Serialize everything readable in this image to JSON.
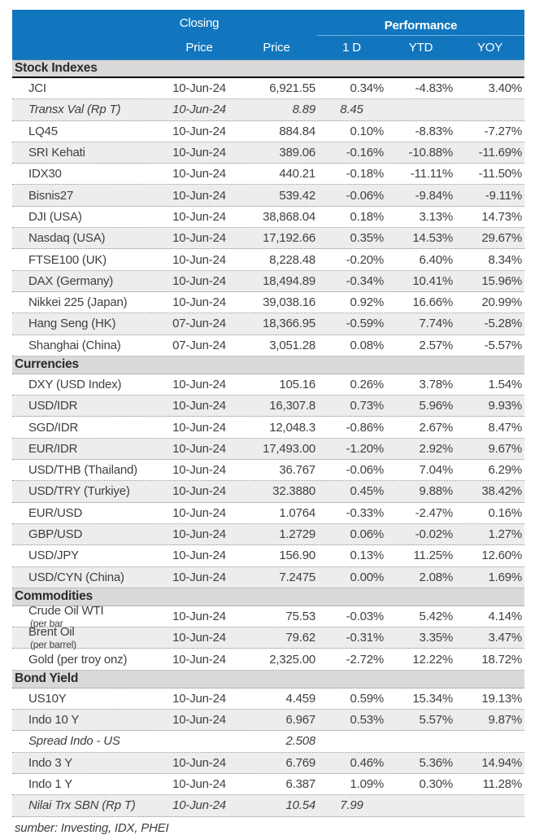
{
  "colors": {
    "header_bg": "#1176BD",
    "header_text": "#FFFFFF",
    "section_bg": "#D9D9D9",
    "row_alt_bg": "#EDEDED",
    "text": "#3F3F3F",
    "divider": "#8F8F8F",
    "section_divider": "#000000"
  },
  "header": {
    "closing_line1": "Closing",
    "closing_line2": "Price",
    "price_label": "Price",
    "performance_label": "Performance",
    "sub_labels": [
      "1 D",
      "YTD",
      "YOY"
    ]
  },
  "sections": [
    {
      "title": "Stock Indexes",
      "rows": [
        {
          "name": "JCI",
          "date": "10-Jun-24",
          "price": "6,921.55",
          "d1": "0.34%",
          "ytd": "-4.83%",
          "yoy": "3.40%"
        },
        {
          "name": "Transx Val (Rp T)",
          "date": "10-Jun-24",
          "price": "8.89",
          "d1": "8.45",
          "ytd": "",
          "yoy": "",
          "aux": true
        },
        {
          "name": "LQ45",
          "date": "10-Jun-24",
          "price": "884.84",
          "d1": "0.10%",
          "ytd": "-8.83%",
          "yoy": "-7.27%"
        },
        {
          "name": "SRI Kehati",
          "date": "10-Jun-24",
          "price": "389.06",
          "d1": "-0.16%",
          "ytd": "-10.88%",
          "yoy": "-11.69%"
        },
        {
          "name": "IDX30",
          "date": "10-Jun-24",
          "price": "440.21",
          "d1": "-0.18%",
          "ytd": "-11.11%",
          "yoy": "-11.50%"
        },
        {
          "name": "Bisnis27",
          "date": "10-Jun-24",
          "price": "539.42",
          "d1": "-0.06%",
          "ytd": "-9.84%",
          "yoy": "-9.11%"
        },
        {
          "name": "DJI (USA)",
          "date": "10-Jun-24",
          "price": "38,868.04",
          "d1": "0.18%",
          "ytd": "3.13%",
          "yoy": "14.73%"
        },
        {
          "name": "Nasdaq (USA)",
          "date": "10-Jun-24",
          "price": "17,192.66",
          "d1": "0.35%",
          "ytd": "14.53%",
          "yoy": "29.67%"
        },
        {
          "name": "FTSE100 (UK)",
          "date": "10-Jun-24",
          "price": "8,228.48",
          "d1": "-0.20%",
          "ytd": "6.40%",
          "yoy": "8.34%"
        },
        {
          "name": "DAX (Germany)",
          "date": "10-Jun-24",
          "price": "18,494.89",
          "d1": "-0.34%",
          "ytd": "10.41%",
          "yoy": "15.96%"
        },
        {
          "name": "Nikkei 225 (Japan)",
          "date": "10-Jun-24",
          "price": "39,038.16",
          "d1": "0.92%",
          "ytd": "16.66%",
          "yoy": "20.99%"
        },
        {
          "name": "Hang Seng (HK)",
          "date": "07-Jun-24",
          "price": "18,366.95",
          "d1": "-0.59%",
          "ytd": "7.74%",
          "yoy": "-5.28%"
        },
        {
          "name": "Shanghai (China)",
          "date": "07-Jun-24",
          "price": "3,051.28",
          "d1": "0.08%",
          "ytd": "2.57%",
          "yoy": "-5.57%"
        }
      ]
    },
    {
      "title": "Currencies",
      "rows": [
        {
          "name": "DXY (USD Index)",
          "date": "10-Jun-24",
          "price": "105.16",
          "d1": "0.26%",
          "ytd": "3.78%",
          "yoy": "1.54%"
        },
        {
          "name": "USD/IDR",
          "date": "10-Jun-24",
          "price": "16,307.8",
          "d1": "0.73%",
          "ytd": "5.96%",
          "yoy": "9.93%"
        },
        {
          "name": "SGD/IDR",
          "date": "10-Jun-24",
          "price": "12,048.3",
          "d1": "-0.86%",
          "ytd": "2.67%",
          "yoy": "8.47%"
        },
        {
          "name": "EUR/IDR",
          "date": "10-Jun-24",
          "price": "17,493.00",
          "d1": "-1.20%",
          "ytd": "2.92%",
          "yoy": "9.67%"
        },
        {
          "name": "USD/THB (Thailand)",
          "date": "10-Jun-24",
          "price": "36.767",
          "d1": "-0.06%",
          "ytd": "7.04%",
          "yoy": "6.29%"
        },
        {
          "name": "USD/TRY (Turkiye)",
          "date": "10-Jun-24",
          "price": "32.3880",
          "d1": "0.45%",
          "ytd": "9.88%",
          "yoy": "38.42%"
        },
        {
          "name": "EUR/USD",
          "date": "10-Jun-24",
          "price": "1.0764",
          "d1": "-0.33%",
          "ytd": "-2.47%",
          "yoy": "0.16%"
        },
        {
          "name": "GBP/USD",
          "date": "10-Jun-24",
          "price": "1.2729",
          "d1": "0.06%",
          "ytd": "-0.02%",
          "yoy": "1.27%"
        },
        {
          "name": "USD/JPY",
          "date": "10-Jun-24",
          "price": "156.90",
          "d1": "0.13%",
          "ytd": "11.25%",
          "yoy": "12.60%"
        },
        {
          "name": "USD/CYN (China)",
          "date": "10-Jun-24",
          "price": "7.2475",
          "d1": "0.00%",
          "ytd": "2.08%",
          "yoy": "1.69%"
        }
      ]
    },
    {
      "title": "Commodities",
      "rows": [
        {
          "name": "Crude Oil WTI",
          "small": "(per bar",
          "date": "10-Jun-24",
          "price": "75.53",
          "d1": "-0.03%",
          "ytd": "5.42%",
          "yoy": "4.14%"
        },
        {
          "name": "Brent Oil",
          "small": "(per barrel)",
          "date": "10-Jun-24",
          "price": "79.62",
          "d1": "-0.31%",
          "ytd": "3.35%",
          "yoy": "3.47%"
        },
        {
          "name": "Gold (per troy onz)",
          "date": "10-Jun-24",
          "price": "2,325.00",
          "d1": "-2.72%",
          "ytd": "12.22%",
          "yoy": "18.72%"
        }
      ]
    },
    {
      "title": "Bond Yield",
      "rows": [
        {
          "name": "US10Y",
          "date": "10-Jun-24",
          "price": "4.459",
          "d1": "0.59%",
          "ytd": "15.34%",
          "yoy": "19.13%"
        },
        {
          "name": "Indo 10 Y",
          "date": "10-Jun-24",
          "price": "6.967",
          "d1": "0.53%",
          "ytd": "5.57%",
          "yoy": "9.87%"
        },
        {
          "name": "Spread Indo - US",
          "date": "",
          "price": "2.508",
          "d1": "",
          "ytd": "",
          "yoy": "",
          "aux": true
        },
        {
          "name": "Indo 3 Y",
          "date": "10-Jun-24",
          "price": "6.769",
          "d1": "0.46%",
          "ytd": "5.36%",
          "yoy": "14.94%"
        },
        {
          "name": "Indo 1 Y",
          "date": "10-Jun-24",
          "price": "6.387",
          "d1": "1.09%",
          "ytd": "0.30%",
          "yoy": "11.28%"
        },
        {
          "name": "Nilai Trx SBN (Rp T)",
          "date": "10-Jun-24",
          "price": "10.54",
          "d1": "7.99",
          "ytd": "",
          "yoy": "",
          "aux": true
        }
      ]
    }
  ],
  "footer": {
    "source_note": "sumber: Investing, IDX, PHEI"
  }
}
